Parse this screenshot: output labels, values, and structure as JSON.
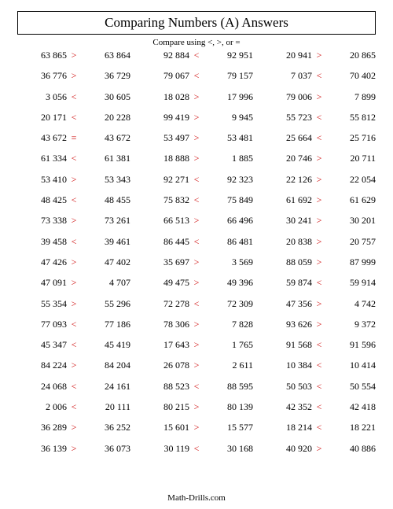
{
  "title": "Comparing Numbers (A) Answers",
  "subtitle": "Compare using <, >, or =",
  "footer": "Math-Drills.com",
  "columns": [
    [
      {
        "a": "63 865",
        "op": ">",
        "b": "63 864"
      },
      {
        "a": "36 776",
        "op": ">",
        "b": "36 729"
      },
      {
        "a": "3 056",
        "op": "<",
        "b": "30 605"
      },
      {
        "a": "20 171",
        "op": "<",
        "b": "20 228"
      },
      {
        "a": "43 672",
        "op": "=",
        "b": "43 672"
      },
      {
        "a": "61 334",
        "op": "<",
        "b": "61 381"
      },
      {
        "a": "53 410",
        "op": ">",
        "b": "53 343"
      },
      {
        "a": "48 425",
        "op": "<",
        "b": "48 455"
      },
      {
        "a": "73 338",
        "op": ">",
        "b": "73 261"
      },
      {
        "a": "39 458",
        "op": "<",
        "b": "39 461"
      },
      {
        "a": "47 426",
        "op": ">",
        "b": "47 402"
      },
      {
        "a": "47 091",
        "op": ">",
        "b": "4 707"
      },
      {
        "a": "55 354",
        "op": ">",
        "b": "55 296"
      },
      {
        "a": "77 093",
        "op": "<",
        "b": "77 186"
      },
      {
        "a": "45 347",
        "op": "<",
        "b": "45 419"
      },
      {
        "a": "84 224",
        "op": ">",
        "b": "84 204"
      },
      {
        "a": "24 068",
        "op": "<",
        "b": "24 161"
      },
      {
        "a": "2 006",
        "op": "<",
        "b": "20 111"
      },
      {
        "a": "36 289",
        "op": ">",
        "b": "36 252"
      },
      {
        "a": "36 139",
        "op": ">",
        "b": "36 073"
      }
    ],
    [
      {
        "a": "92 884",
        "op": "<",
        "b": "92 951"
      },
      {
        "a": "79 067",
        "op": "<",
        "b": "79 157"
      },
      {
        "a": "18 028",
        "op": ">",
        "b": "17 996"
      },
      {
        "a": "99 419",
        "op": ">",
        "b": "9 945"
      },
      {
        "a": "53 497",
        "op": ">",
        "b": "53 481"
      },
      {
        "a": "18 888",
        "op": ">",
        "b": "1 885"
      },
      {
        "a": "92 271",
        "op": "<",
        "b": "92 323"
      },
      {
        "a": "75 832",
        "op": "<",
        "b": "75 849"
      },
      {
        "a": "66 513",
        "op": ">",
        "b": "66 496"
      },
      {
        "a": "86 445",
        "op": "<",
        "b": "86 481"
      },
      {
        "a": "35 697",
        "op": ">",
        "b": "3 569"
      },
      {
        "a": "49 475",
        "op": ">",
        "b": "49 396"
      },
      {
        "a": "72 278",
        "op": "<",
        "b": "72 309"
      },
      {
        "a": "78 306",
        "op": ">",
        "b": "7 828"
      },
      {
        "a": "17 643",
        "op": ">",
        "b": "1 765"
      },
      {
        "a": "26 078",
        "op": ">",
        "b": "2 611"
      },
      {
        "a": "88 523",
        "op": "<",
        "b": "88 595"
      },
      {
        "a": "80 215",
        "op": ">",
        "b": "80 139"
      },
      {
        "a": "15 601",
        "op": ">",
        "b": "15 577"
      },
      {
        "a": "30 119",
        "op": "<",
        "b": "30 168"
      }
    ],
    [
      {
        "a": "20 941",
        "op": ">",
        "b": "20 865"
      },
      {
        "a": "7 037",
        "op": "<",
        "b": "70 402"
      },
      {
        "a": "79 006",
        "op": ">",
        "b": "7 899"
      },
      {
        "a": "55 723",
        "op": "<",
        "b": "55 812"
      },
      {
        "a": "25 664",
        "op": "<",
        "b": "25 716"
      },
      {
        "a": "20 746",
        "op": ">",
        "b": "20 711"
      },
      {
        "a": "22 126",
        "op": ">",
        "b": "22 054"
      },
      {
        "a": "61 692",
        "op": ">",
        "b": "61 629"
      },
      {
        "a": "30 241",
        "op": ">",
        "b": "30 201"
      },
      {
        "a": "20 838",
        "op": ">",
        "b": "20 757"
      },
      {
        "a": "88 059",
        "op": ">",
        "b": "87 999"
      },
      {
        "a": "59 874",
        "op": "<",
        "b": "59 914"
      },
      {
        "a": "47 356",
        "op": ">",
        "b": "4 742"
      },
      {
        "a": "93 626",
        "op": ">",
        "b": "9 372"
      },
      {
        "a": "91 568",
        "op": "<",
        "b": "91 596"
      },
      {
        "a": "10 384",
        "op": "<",
        "b": "10 414"
      },
      {
        "a": "50 503",
        "op": "<",
        "b": "50 554"
      },
      {
        "a": "42 352",
        "op": "<",
        "b": "42 418"
      },
      {
        "a": "18 214",
        "op": "<",
        "b": "18 221"
      },
      {
        "a": "40 920",
        "op": ">",
        "b": "40 886"
      }
    ]
  ]
}
